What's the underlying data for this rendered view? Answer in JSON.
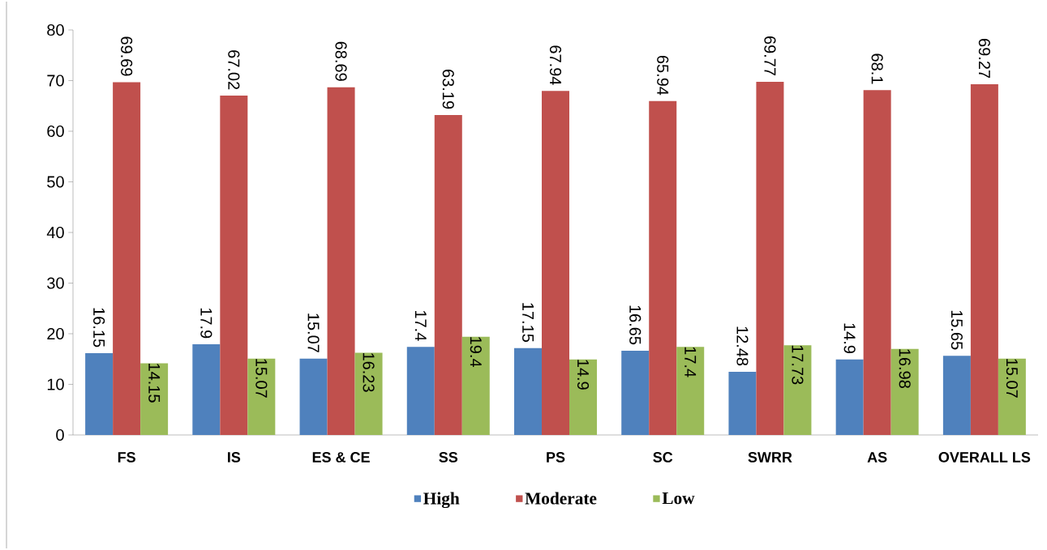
{
  "chart_data": {
    "type": "bar",
    "categories": [
      "FS",
      "IS",
      "ES & CE",
      "SS",
      "PS",
      "SC",
      "SWRR",
      "AS",
      "OVERALL LS"
    ],
    "series": [
      {
        "name": "High",
        "color": "#4f81bd",
        "values": [
          16.15,
          17.9,
          15.07,
          17.4,
          17.15,
          16.65,
          12.48,
          14.9,
          15.65
        ]
      },
      {
        "name": "Moderate",
        "color": "#c0504d",
        "values": [
          69.69,
          67.02,
          68.69,
          63.19,
          67.94,
          65.94,
          69.77,
          68.1,
          69.27
        ]
      },
      {
        "name": "Low",
        "color": "#9bbb59",
        "values": [
          14.15,
          15.07,
          16.23,
          19.4,
          14.9,
          17.4,
          17.73,
          16.98,
          15.07
        ]
      }
    ],
    "ylim": [
      0,
      80
    ],
    "yticks": [
      0,
      10,
      20,
      30,
      40,
      50,
      60,
      70,
      80
    ],
    "grid": false,
    "legend": "bottom",
    "data_labels": true
  }
}
